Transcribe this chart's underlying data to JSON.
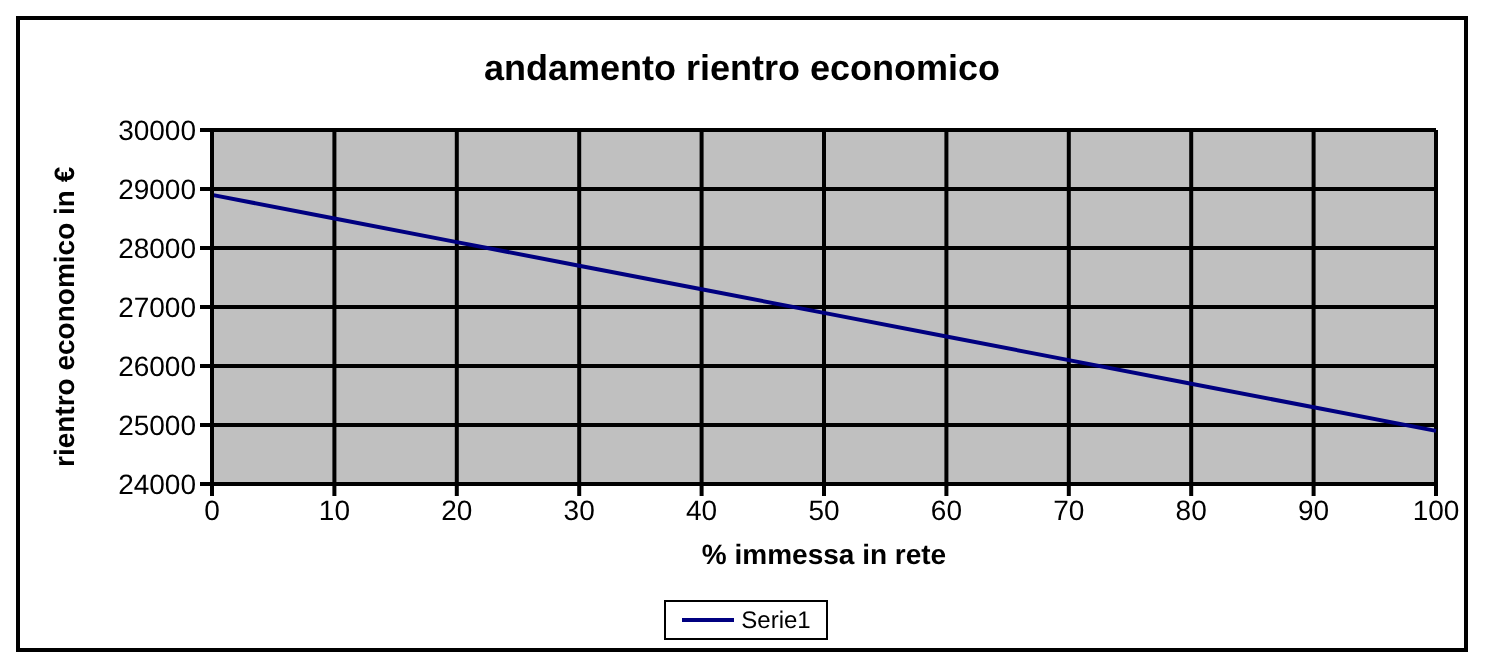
{
  "chart_data": {
    "type": "line",
    "title": "andamento rientro economico",
    "xlabel": "% immessa in rete",
    "ylabel": "rientro economico in €",
    "categories": [
      "0",
      "10",
      "20",
      "30",
      "40",
      "50",
      "60",
      "70",
      "80",
      "90",
      "100"
    ],
    "series": [
      {
        "name": "Serie1",
        "color": "#000080",
        "values": [
          28900,
          28500,
          28100,
          27700,
          27300,
          26900,
          26500,
          26100,
          25700,
          25300,
          24900
        ]
      }
    ],
    "ylim": [
      24000,
      30000
    ],
    "yticks": [
      24000,
      25000,
      26000,
      27000,
      28000,
      29000,
      30000
    ],
    "grid": true,
    "legend": "bottom",
    "marker": "none",
    "line_style": "solid"
  }
}
